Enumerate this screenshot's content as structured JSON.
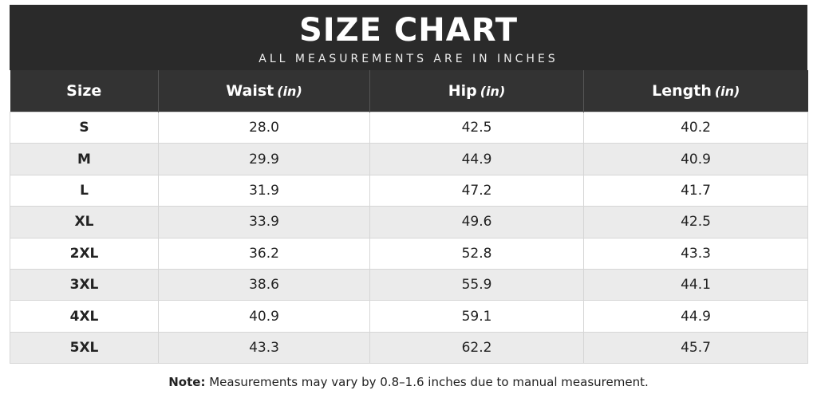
{
  "header": {
    "title": "SIZE CHART",
    "subtitle": "ALL MEASUREMENTS ARE IN INCHES"
  },
  "table": {
    "columns": [
      {
        "label": "Size"
      },
      {
        "label": "Waist",
        "unit": "(in)"
      },
      {
        "label": "Hip",
        "unit": "(in)"
      },
      {
        "label": "Length",
        "unit": "(in)"
      }
    ],
    "rows": [
      [
        "S",
        "28.0",
        "42.5",
        "40.2"
      ],
      [
        "M",
        "29.9",
        "44.9",
        "40.9"
      ],
      [
        "L",
        "31.9",
        "47.2",
        "41.7"
      ],
      [
        "XL",
        "33.9",
        "49.6",
        "42.5"
      ],
      [
        "2XL",
        "36.2",
        "52.8",
        "43.3"
      ],
      [
        "3XL",
        "38.6",
        "55.9",
        "44.1"
      ],
      [
        "4XL",
        "40.9",
        "59.1",
        "44.9"
      ],
      [
        "5XL",
        "43.3",
        "62.2",
        "45.7"
      ]
    ]
  },
  "note": {
    "label": "Note:",
    "text": "Measurements may vary by 0.8–1.6 inches due to manual measurement."
  }
}
